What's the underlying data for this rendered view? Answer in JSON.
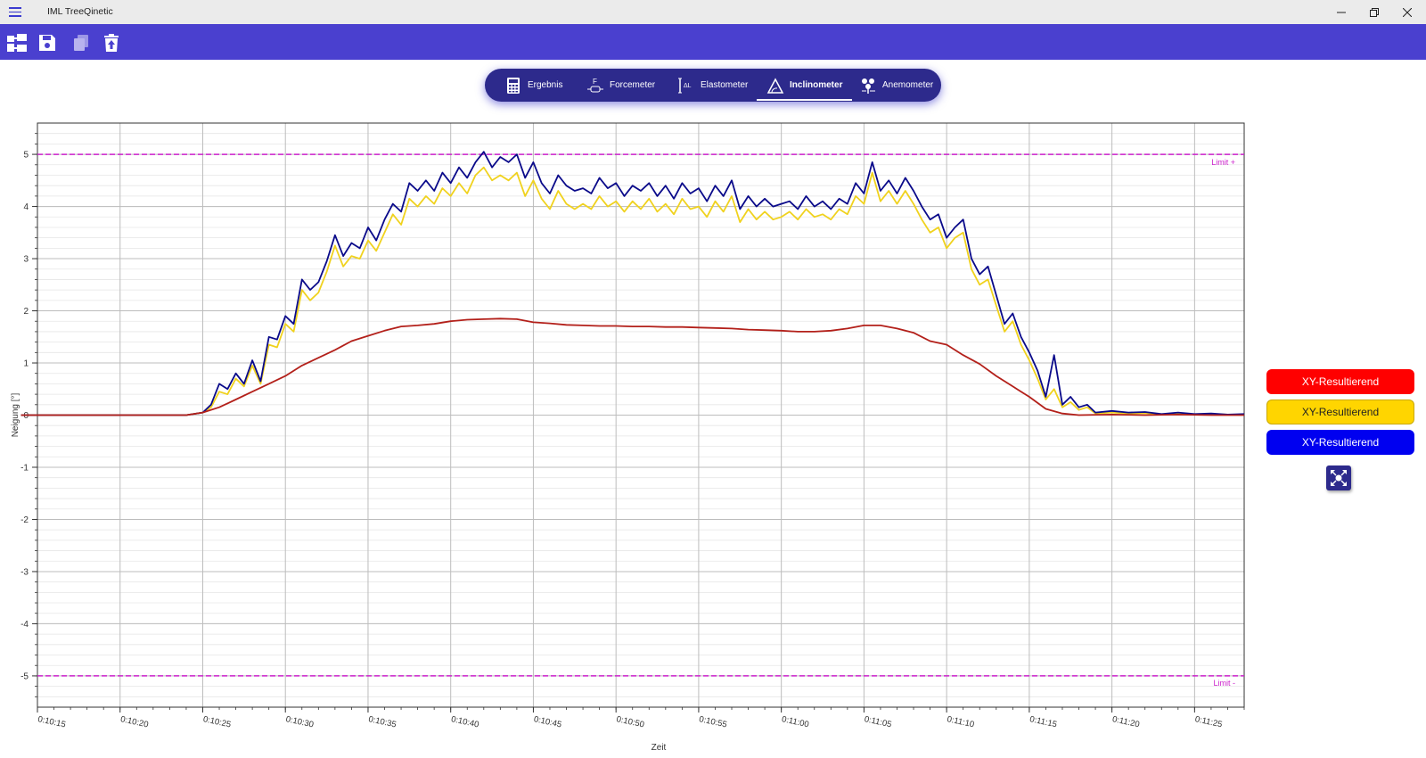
{
  "window": {
    "title": "IML TreeQinetic"
  },
  "toolbar": {
    "buttons": [
      "tree-structure",
      "save",
      "copy",
      "delete-export"
    ]
  },
  "tabs": [
    {
      "label": "Ergebnis",
      "icon": "calculator-icon"
    },
    {
      "label": "Forcemeter",
      "icon": "forcemeter-icon"
    },
    {
      "label": "Elastometer",
      "icon": "elastometer-icon"
    },
    {
      "label": "Inclinometer",
      "icon": "inclinometer-icon",
      "active": true
    },
    {
      "label": "Anemometer",
      "icon": "anemometer-icon"
    }
  ],
  "legend": [
    {
      "label": "XY-Resultierend",
      "color": "#ff0000",
      "text_color": "#ffffff"
    },
    {
      "label": "XY-Resultierend",
      "color": "#ffd500",
      "text_color": "#222222"
    },
    {
      "label": "XY-Resultierend",
      "color": "#0000f0",
      "text_color": "#ffffff"
    }
  ],
  "chart_data": {
    "type": "line",
    "xlabel": "Zeit",
    "ylabel": "Neigung [°]",
    "x_range_seconds": [
      615,
      688
    ],
    "xticks": [
      "0:10:15",
      "0:10:20",
      "0:10:25",
      "0:10:30",
      "0:10:35",
      "0:10:40",
      "0:10:45",
      "0:10:50",
      "0:10:55",
      "0:11:00",
      "0:11:05",
      "0:11:10",
      "0:11:15",
      "0:11:20",
      "0:11:25"
    ],
    "yticks": [
      "5",
      "4",
      "3",
      "2",
      "1",
      "0",
      "-1",
      "-2",
      "-3",
      "-4",
      "-5"
    ],
    "ylim": [
      -5.6,
      5.6
    ],
    "grid": true,
    "limits": [
      {
        "label": "Limit +",
        "value": 5,
        "color": "#cc22cc"
      },
      {
        "label": "Limit -",
        "value": -5,
        "color": "#cc22cc"
      }
    ],
    "series": [
      {
        "color": "#0a0a8a",
        "points": [
          [
            614,
            0
          ],
          [
            624,
            0
          ],
          [
            625,
            0.05
          ],
          [
            625.5,
            0.2
          ],
          [
            626,
            0.6
          ],
          [
            626.5,
            0.5
          ],
          [
            627,
            0.8
          ],
          [
            627.5,
            0.6
          ],
          [
            628,
            1.05
          ],
          [
            628.5,
            0.65
          ],
          [
            629,
            1.5
          ],
          [
            629.5,
            1.45
          ],
          [
            630,
            1.9
          ],
          [
            630.5,
            1.75
          ],
          [
            631,
            2.6
          ],
          [
            631.5,
            2.4
          ],
          [
            632,
            2.55
          ],
          [
            632.5,
            2.95
          ],
          [
            633,
            3.45
          ],
          [
            633.5,
            3.05
          ],
          [
            634,
            3.3
          ],
          [
            634.5,
            3.2
          ],
          [
            635,
            3.6
          ],
          [
            635.5,
            3.35
          ],
          [
            636,
            3.75
          ],
          [
            636.5,
            4.05
          ],
          [
            637,
            3.9
          ],
          [
            637.5,
            4.45
          ],
          [
            638,
            4.3
          ],
          [
            638.5,
            4.5
          ],
          [
            639,
            4.3
          ],
          [
            639.5,
            4.65
          ],
          [
            640,
            4.45
          ],
          [
            640.5,
            4.75
          ],
          [
            641,
            4.55
          ],
          [
            641.5,
            4.85
          ],
          [
            642,
            5.05
          ],
          [
            642.5,
            4.75
          ],
          [
            643,
            4.95
          ],
          [
            643.5,
            4.85
          ],
          [
            644,
            5.0
          ],
          [
            644.5,
            4.55
          ],
          [
            645,
            4.85
          ],
          [
            645.5,
            4.45
          ],
          [
            646,
            4.25
          ],
          [
            646.5,
            4.6
          ],
          [
            647,
            4.4
          ],
          [
            647.5,
            4.3
          ],
          [
            648,
            4.35
          ],
          [
            648.5,
            4.25
          ],
          [
            649,
            4.55
          ],
          [
            649.5,
            4.35
          ],
          [
            650,
            4.45
          ],
          [
            650.5,
            4.2
          ],
          [
            651,
            4.4
          ],
          [
            651.5,
            4.3
          ],
          [
            652,
            4.45
          ],
          [
            652.5,
            4.2
          ],
          [
            653,
            4.4
          ],
          [
            653.5,
            4.15
          ],
          [
            654,
            4.45
          ],
          [
            654.5,
            4.25
          ],
          [
            655,
            4.35
          ],
          [
            655.5,
            4.1
          ],
          [
            656,
            4.4
          ],
          [
            656.5,
            4.2
          ],
          [
            657,
            4.5
          ],
          [
            657.5,
            3.95
          ],
          [
            658,
            4.2
          ],
          [
            658.5,
            4.0
          ],
          [
            659,
            4.15
          ],
          [
            659.5,
            4.0
          ],
          [
            660,
            4.05
          ],
          [
            660.5,
            4.1
          ],
          [
            661,
            3.95
          ],
          [
            661.5,
            4.2
          ],
          [
            662,
            4.0
          ],
          [
            662.5,
            4.1
          ],
          [
            663,
            3.95
          ],
          [
            663.5,
            4.15
          ],
          [
            664,
            4.05
          ],
          [
            664.5,
            4.45
          ],
          [
            665,
            4.25
          ],
          [
            665.5,
            4.85
          ],
          [
            666,
            4.3
          ],
          [
            666.5,
            4.5
          ],
          [
            667,
            4.25
          ],
          [
            667.5,
            4.55
          ],
          [
            668,
            4.3
          ],
          [
            668.5,
            4.0
          ],
          [
            669,
            3.75
          ],
          [
            669.5,
            3.85
          ],
          [
            670,
            3.4
          ],
          [
            670.5,
            3.6
          ],
          [
            671,
            3.75
          ],
          [
            671.5,
            3.0
          ],
          [
            672,
            2.7
          ],
          [
            672.5,
            2.85
          ],
          [
            673,
            2.3
          ],
          [
            673.5,
            1.75
          ],
          [
            674,
            1.95
          ],
          [
            674.5,
            1.5
          ],
          [
            675,
            1.2
          ],
          [
            675.5,
            0.85
          ],
          [
            676,
            0.35
          ],
          [
            676.5,
            1.15
          ],
          [
            677,
            0.2
          ],
          [
            677.5,
            0.35
          ],
          [
            678,
            0.15
          ],
          [
            678.5,
            0.2
          ],
          [
            679,
            0.05
          ],
          [
            680,
            0.08
          ],
          [
            681,
            0.05
          ],
          [
            682,
            0.06
          ],
          [
            683,
            0.02
          ],
          [
            684,
            0.05
          ],
          [
            685,
            0.02
          ],
          [
            686,
            0.03
          ],
          [
            687,
            0.01
          ],
          [
            688,
            0.02
          ]
        ]
      },
      {
        "color": "#f0d21e",
        "points": [
          [
            614,
            0
          ],
          [
            624,
            0
          ],
          [
            625,
            0.05
          ],
          [
            625.5,
            0.15
          ],
          [
            626,
            0.45
          ],
          [
            626.5,
            0.4
          ],
          [
            627,
            0.7
          ],
          [
            627.5,
            0.55
          ],
          [
            628,
            0.95
          ],
          [
            628.5,
            0.6
          ],
          [
            629,
            1.35
          ],
          [
            629.5,
            1.3
          ],
          [
            630,
            1.75
          ],
          [
            630.5,
            1.6
          ],
          [
            631,
            2.4
          ],
          [
            631.5,
            2.2
          ],
          [
            632,
            2.35
          ],
          [
            632.5,
            2.75
          ],
          [
            633,
            3.25
          ],
          [
            633.5,
            2.85
          ],
          [
            634,
            3.05
          ],
          [
            634.5,
            3.0
          ],
          [
            635,
            3.35
          ],
          [
            635.5,
            3.15
          ],
          [
            636,
            3.5
          ],
          [
            636.5,
            3.85
          ],
          [
            637,
            3.65
          ],
          [
            637.5,
            4.15
          ],
          [
            638,
            4.0
          ],
          [
            638.5,
            4.2
          ],
          [
            639,
            4.05
          ],
          [
            639.5,
            4.35
          ],
          [
            640,
            4.2
          ],
          [
            640.5,
            4.45
          ],
          [
            641,
            4.25
          ],
          [
            641.5,
            4.6
          ],
          [
            642,
            4.75
          ],
          [
            642.5,
            4.5
          ],
          [
            643,
            4.6
          ],
          [
            643.5,
            4.5
          ],
          [
            644,
            4.65
          ],
          [
            644.5,
            4.2
          ],
          [
            645,
            4.5
          ],
          [
            645.5,
            4.15
          ],
          [
            646,
            3.95
          ],
          [
            646.5,
            4.3
          ],
          [
            647,
            4.05
          ],
          [
            647.5,
            3.95
          ],
          [
            648,
            4.05
          ],
          [
            648.5,
            3.95
          ],
          [
            649,
            4.2
          ],
          [
            649.5,
            4.0
          ],
          [
            650,
            4.1
          ],
          [
            650.5,
            3.9
          ],
          [
            651,
            4.1
          ],
          [
            651.5,
            3.95
          ],
          [
            652,
            4.15
          ],
          [
            652.5,
            3.9
          ],
          [
            653,
            4.05
          ],
          [
            653.5,
            3.85
          ],
          [
            654,
            4.15
          ],
          [
            654.5,
            3.95
          ],
          [
            655,
            4.0
          ],
          [
            655.5,
            3.8
          ],
          [
            656,
            4.1
          ],
          [
            656.5,
            3.9
          ],
          [
            657,
            4.2
          ],
          [
            657.5,
            3.7
          ],
          [
            658,
            3.95
          ],
          [
            658.5,
            3.75
          ],
          [
            659,
            3.9
          ],
          [
            659.5,
            3.75
          ],
          [
            660,
            3.8
          ],
          [
            660.5,
            3.9
          ],
          [
            661,
            3.75
          ],
          [
            661.5,
            3.95
          ],
          [
            662,
            3.8
          ],
          [
            662.5,
            3.85
          ],
          [
            663,
            3.75
          ],
          [
            663.5,
            3.95
          ],
          [
            664,
            3.85
          ],
          [
            664.5,
            4.2
          ],
          [
            665,
            4.05
          ],
          [
            665.5,
            4.65
          ],
          [
            666,
            4.1
          ],
          [
            666.5,
            4.3
          ],
          [
            667,
            4.05
          ],
          [
            667.5,
            4.3
          ],
          [
            668,
            4.05
          ],
          [
            668.5,
            3.75
          ],
          [
            669,
            3.5
          ],
          [
            669.5,
            3.6
          ],
          [
            670,
            3.2
          ],
          [
            670.5,
            3.4
          ],
          [
            671,
            3.5
          ],
          [
            671.5,
            2.8
          ],
          [
            672,
            2.5
          ],
          [
            672.5,
            2.6
          ],
          [
            673,
            2.1
          ],
          [
            673.5,
            1.6
          ],
          [
            674,
            1.8
          ],
          [
            674.5,
            1.35
          ],
          [
            675,
            1.05
          ],
          [
            675.5,
            0.7
          ],
          [
            676,
            0.3
          ],
          [
            676.5,
            0.5
          ],
          [
            677,
            0.15
          ],
          [
            677.5,
            0.25
          ],
          [
            678,
            0.1
          ],
          [
            678.5,
            0.15
          ],
          [
            679,
            0.03
          ],
          [
            680,
            0.05
          ],
          [
            681,
            0.03
          ],
          [
            682,
            0.04
          ],
          [
            683,
            0.01
          ],
          [
            684,
            0.03
          ],
          [
            685,
            0.01
          ],
          [
            686,
            0.02
          ],
          [
            687,
            0.01
          ],
          [
            688,
            0.01
          ]
        ]
      },
      {
        "color": "#b3201a",
        "points": [
          [
            614,
            0
          ],
          [
            624,
            0
          ],
          [
            625,
            0.05
          ],
          [
            626,
            0.15
          ],
          [
            627,
            0.3
          ],
          [
            628,
            0.45
          ],
          [
            629,
            0.6
          ],
          [
            630,
            0.75
          ],
          [
            631,
            0.95
          ],
          [
            632,
            1.1
          ],
          [
            633,
            1.25
          ],
          [
            634,
            1.42
          ],
          [
            635,
            1.52
          ],
          [
            636,
            1.62
          ],
          [
            637,
            1.7
          ],
          [
            638,
            1.72
          ],
          [
            639,
            1.75
          ],
          [
            640,
            1.8
          ],
          [
            641,
            1.83
          ],
          [
            642,
            1.84
          ],
          [
            643,
            1.85
          ],
          [
            644,
            1.84
          ],
          [
            645,
            1.78
          ],
          [
            646,
            1.76
          ],
          [
            647,
            1.73
          ],
          [
            648,
            1.72
          ],
          [
            649,
            1.71
          ],
          [
            650,
            1.71
          ],
          [
            651,
            1.7
          ],
          [
            652,
            1.7
          ],
          [
            653,
            1.69
          ],
          [
            654,
            1.69
          ],
          [
            655,
            1.68
          ],
          [
            656,
            1.67
          ],
          [
            657,
            1.66
          ],
          [
            658,
            1.64
          ],
          [
            659,
            1.63
          ],
          [
            660,
            1.62
          ],
          [
            661,
            1.6
          ],
          [
            662,
            1.6
          ],
          [
            663,
            1.62
          ],
          [
            664,
            1.66
          ],
          [
            665,
            1.72
          ],
          [
            666,
            1.72
          ],
          [
            667,
            1.66
          ],
          [
            668,
            1.58
          ],
          [
            669,
            1.42
          ],
          [
            670,
            1.35
          ],
          [
            671,
            1.15
          ],
          [
            672,
            0.98
          ],
          [
            673,
            0.75
          ],
          [
            674,
            0.55
          ],
          [
            675,
            0.35
          ],
          [
            676,
            0.12
          ],
          [
            677,
            0.03
          ],
          [
            678,
            0.0
          ],
          [
            680,
            0.01
          ],
          [
            682,
            0.0
          ],
          [
            684,
            0.01
          ],
          [
            686,
            0.0
          ],
          [
            688,
            0.0
          ]
        ]
      }
    ]
  }
}
